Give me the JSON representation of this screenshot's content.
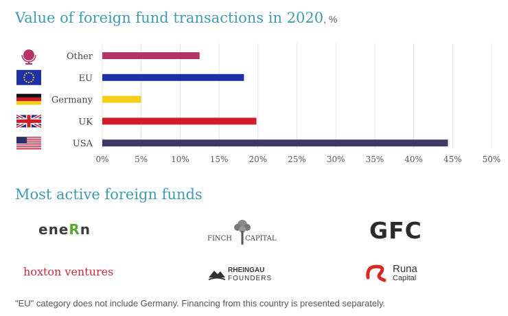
{
  "header": {
    "title": "Value of foreign fund transactions in 2020",
    "unit": ", %"
  },
  "chart_data": {
    "type": "bar",
    "orientation": "horizontal",
    "categories": [
      "Other",
      "EU",
      "Germany",
      "UK",
      "USA"
    ],
    "values": [
      12.5,
      18.2,
      5.0,
      19.8,
      44.4
    ],
    "colors": [
      "#b4336b",
      "#1f2fa5",
      "#f6cf17",
      "#d11a2a",
      "#3f3867"
    ],
    "flag_icons": [
      "globe-icon",
      "eu-flag-icon",
      "germany-flag-icon",
      "uk-flag-icon",
      "usa-flag-icon"
    ],
    "xlim": [
      0,
      50
    ],
    "xticks": [
      0,
      5,
      10,
      15,
      20,
      25,
      30,
      35,
      40,
      45,
      50
    ],
    "tick_suffix": "%",
    "grid": true
  },
  "funds": {
    "title": "Most active foreign funds",
    "enern": {
      "pre": "ene",
      "accent": "R",
      "post": "n"
    },
    "finch": {
      "left": "FINCH",
      "right": "CAPITAL"
    },
    "gfc": "GFC",
    "hoxton": "hoxton ventures",
    "rheingau": {
      "line1": "RHEINGAU",
      "line2": "FOUNDERS"
    },
    "runa": {
      "line1": "Runa",
      "line2": "Capital"
    }
  },
  "footnote": "\"EU\" category does not include Germany. Financing from this country is presented separately."
}
